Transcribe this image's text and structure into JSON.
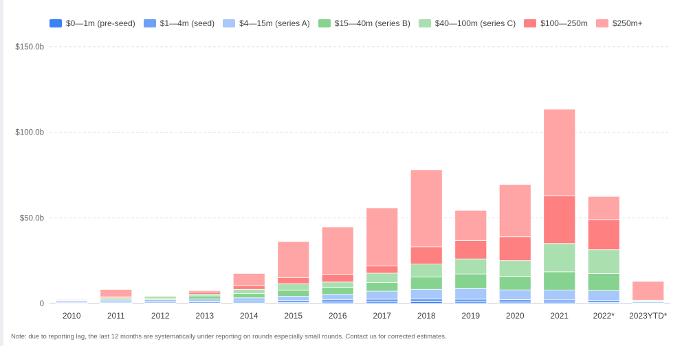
{
  "chart_data": {
    "type": "bar",
    "stacked": true,
    "title": "",
    "xlabel": "",
    "ylabel": "",
    "ylim": [
      0,
      150
    ],
    "yticks": [
      0,
      50,
      100,
      150
    ],
    "ytick_labels": [
      "0",
      "$50.0b",
      "$100.0b",
      "$150.0b"
    ],
    "grid": true,
    "legend_position": "top",
    "categories": [
      "2010",
      "2011",
      "2012",
      "2013",
      "2014",
      "2015",
      "2016",
      "2017",
      "2018",
      "2019",
      "2020",
      "2021",
      "2022*",
      "2023YTD*"
    ],
    "series": [
      {
        "name": "$0—1m (pre-seed)",
        "color": "#3b82f6",
        "values": [
          0.2,
          0.3,
          0.3,
          0.3,
          0.4,
          0.6,
          0.8,
          0.9,
          1.0,
          0.9,
          0.8,
          0.8,
          0.6,
          0.1
        ]
      },
      {
        "name": "$1—4m (seed)",
        "color": "#6fa0f5",
        "values": [
          0.5,
          0.5,
          0.6,
          0.7,
          0.9,
          1.2,
          1.5,
          1.6,
          1.8,
          1.6,
          1.4,
          1.3,
          1.2,
          0.2
        ]
      },
      {
        "name": "$4—15m (series A)",
        "color": "#a8c8fb",
        "values": [
          0.8,
          1.2,
          1.3,
          1.6,
          2.0,
          2.4,
          3.0,
          4.7,
          5.5,
          6.2,
          5.7,
          5.7,
          5.6,
          0.7
        ]
      },
      {
        "name": "$15—40m (series B)",
        "color": "#86d38f",
        "values": [
          0.3,
          0.6,
          0.8,
          1.8,
          2.5,
          3.5,
          4.2,
          5.0,
          7.2,
          8.5,
          8.0,
          10.7,
          10.1,
          0.4
        ]
      },
      {
        "name": "$40—100m (series C)",
        "color": "#aadfb0",
        "values": [
          0.3,
          0.7,
          1.0,
          1.0,
          2.5,
          3.8,
          3.0,
          5.5,
          7.5,
          8.8,
          9.1,
          16.5,
          13.9,
          0.5
        ]
      },
      {
        "name": "$100—250m",
        "color": "#ff8080",
        "values": [
          0.0,
          0.6,
          0.4,
          1.3,
          2.2,
          3.5,
          4.5,
          4.3,
          10.0,
          10.7,
          14.0,
          28.0,
          17.6,
          0.0
        ]
      },
      {
        "name": "$250m+",
        "color": "#ffa5a5",
        "values": [
          0.4,
          4.3,
          0.2,
          0.8,
          7.0,
          21.2,
          27.6,
          33.8,
          45.0,
          17.7,
          30.5,
          50.5,
          13.5,
          11.0
        ]
      }
    ]
  },
  "footnote": "Note: due to reporting lag, the last 12 months are systematically under reporting on rounds especially small rounds. Contact us for corrected estimates."
}
